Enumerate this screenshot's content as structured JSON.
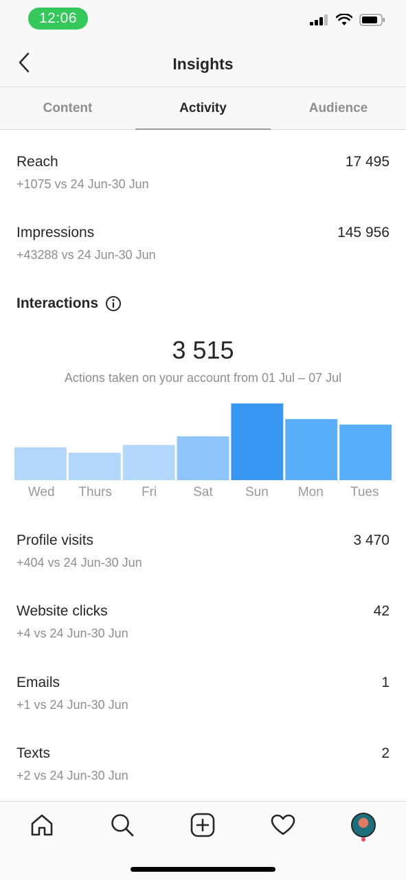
{
  "status_bar": {
    "time": "12:06"
  },
  "header": {
    "title": "Insights"
  },
  "tabs": [
    {
      "label": "Content",
      "active": false
    },
    {
      "label": "Activity",
      "active": true
    },
    {
      "label": "Audience",
      "active": false
    }
  ],
  "metrics_top": [
    {
      "label": "Reach",
      "value": "17 495",
      "comparison": "+1075 vs 24 Jun-30 Jun"
    },
    {
      "label": "Impressions",
      "value": "145 956",
      "comparison": "+43288 vs 24 Jun-30 Jun"
    }
  ],
  "interactions": {
    "title": "Interactions",
    "total": "3 515",
    "caption": "Actions taken on your account from 01 Jul – 07 Jul"
  },
  "chart_data": {
    "type": "bar",
    "categories": [
      "Wed",
      "Thurs",
      "Fri",
      "Sat",
      "Sun",
      "Mon",
      "Tues"
    ],
    "values": [
      42,
      35,
      45,
      56,
      98,
      78,
      71
    ],
    "ylim": [
      0,
      100
    ],
    "bar_colors": [
      "#b3d7fb",
      "#b3d7fb",
      "#b3d7fb",
      "#8ec6fc",
      "#3897f0",
      "#5aaffa",
      "#5aaffa"
    ],
    "grid": false
  },
  "metrics_bottom": [
    {
      "label": "Profile visits",
      "value": "3 470",
      "comparison": "+404 vs 24 Jun-30 Jun"
    },
    {
      "label": "Website clicks",
      "value": "42",
      "comparison": "+4 vs 24 Jun-30 Jun"
    },
    {
      "label": "Emails",
      "value": "1",
      "comparison": "+1 vs 24 Jun-30 Jun"
    },
    {
      "label": "Texts",
      "value": "2",
      "comparison": "+2 vs 24 Jun-30 Jun"
    }
  ],
  "bottom_nav": {
    "icons": [
      "home-icon",
      "search-icon",
      "add-post-icon",
      "activity-heart-icon",
      "profile-avatar"
    ]
  },
  "colors": {
    "accent_blue": "#3897f0",
    "text_primary": "#262626",
    "text_secondary": "#8e8e8e",
    "status_green": "#34c759"
  }
}
